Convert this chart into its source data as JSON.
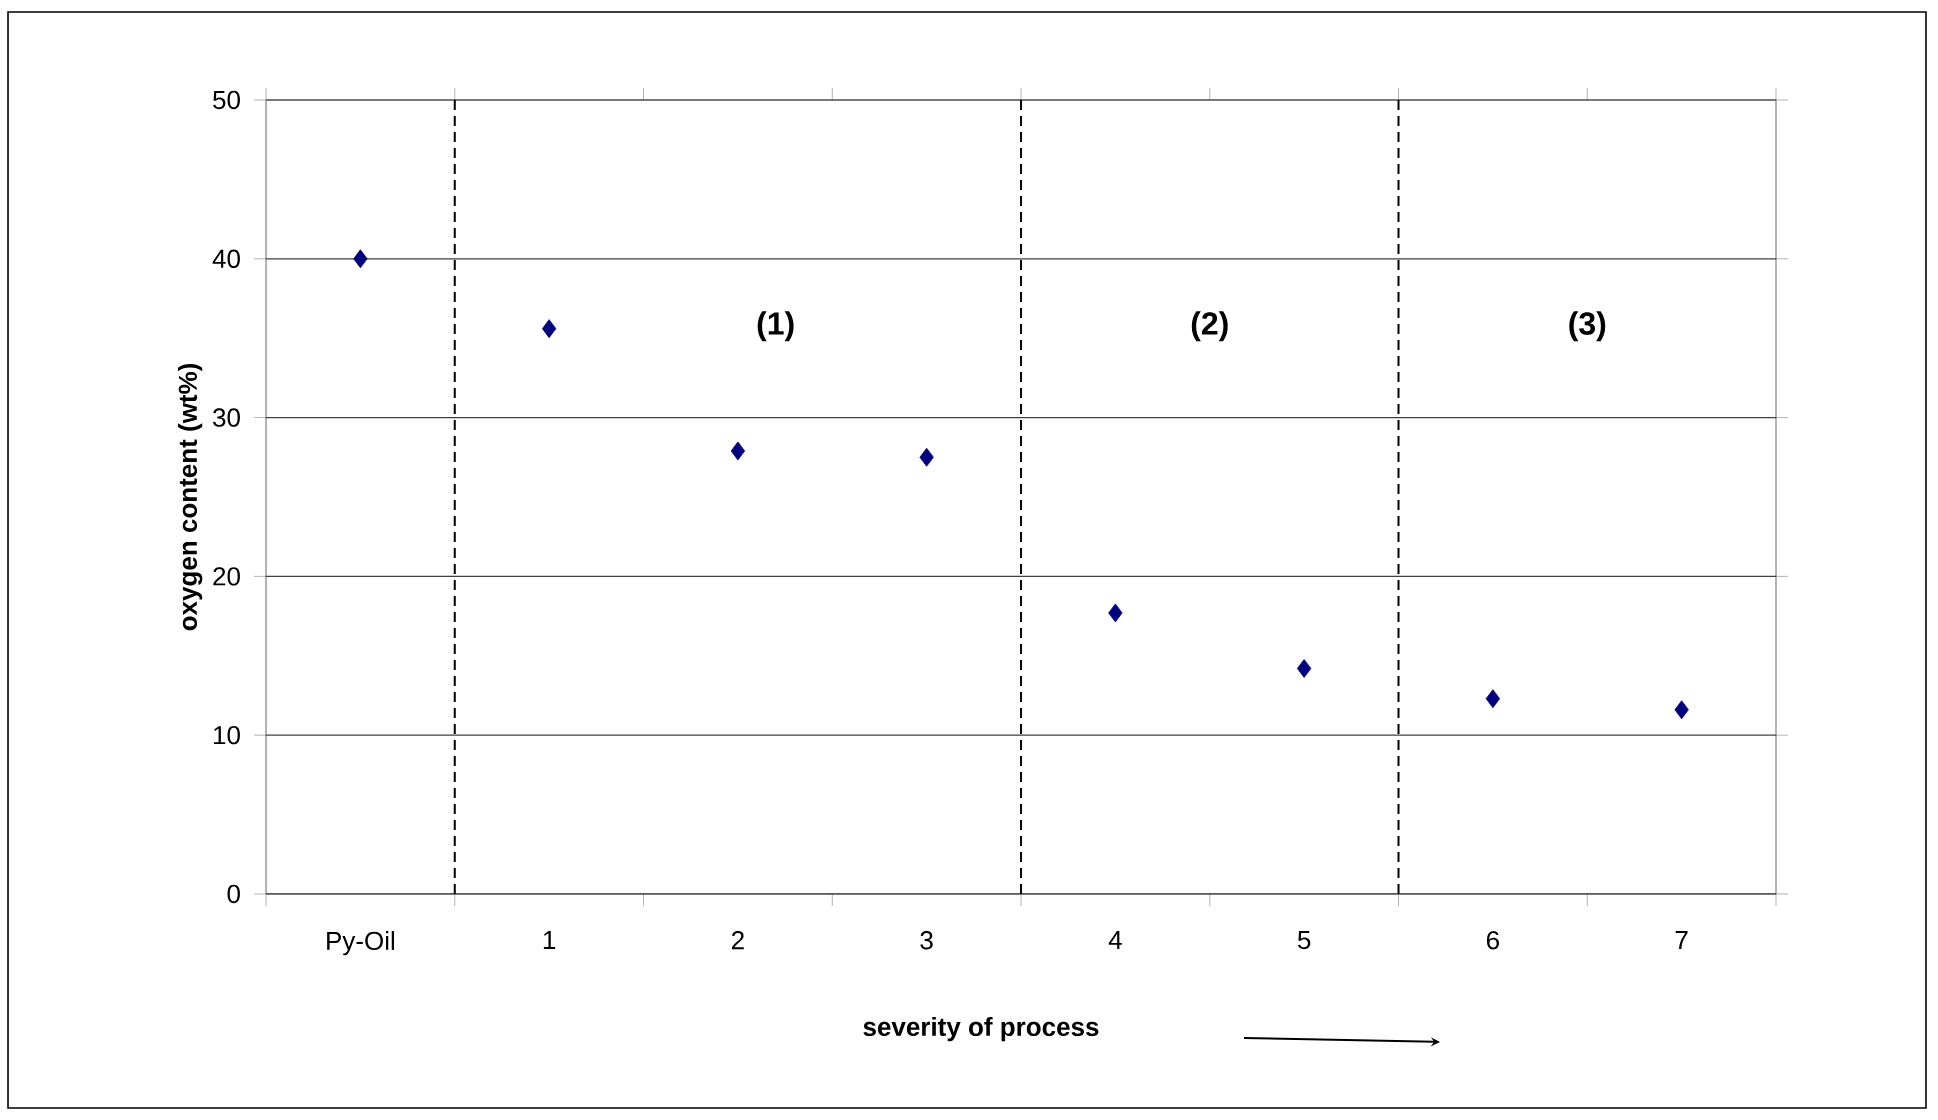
{
  "chart_data": {
    "type": "scatter",
    "xlabel": "severity of process",
    "ylabel": "oxygen content (wt%)",
    "categories": [
      "Py-Oil",
      "1",
      "2",
      "3",
      "4",
      "5",
      "6",
      "7"
    ],
    "values": [
      40.0,
      35.6,
      27.9,
      27.5,
      17.7,
      14.2,
      12.3,
      11.6
    ],
    "color": "#000080",
    "marker": "diamond",
    "grid": "y",
    "ylim": [
      0,
      50
    ],
    "yticks": [
      0,
      10,
      20,
      30,
      40,
      50
    ],
    "annotations": [
      "(1)",
      "(2)",
      "(3)"
    ]
  }
}
